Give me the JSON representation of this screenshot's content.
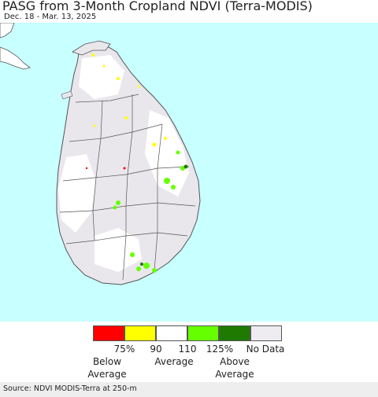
{
  "header": {
    "title": "PASG from 3-Month Cropland NDVI (Terra-MODIS)",
    "date_range": "Dec. 18 - Mar. 13, 2025"
  },
  "colors": {
    "ocean": "#c8ffff",
    "land": "#ffffff",
    "no_data": "#e8e6ea",
    "boundary": "#555555",
    "dry": "#ffff00",
    "wet": "#66ff00",
    "very_wet": "#1e7a00"
  },
  "legend": {
    "classes": [
      {
        "color": "#ff0000",
        "meaning": "below 75%"
      },
      {
        "color": "#ffff00",
        "meaning": "75-90%"
      },
      {
        "color": "#ffffff",
        "meaning": "90-110%"
      },
      {
        "color": "#66ff00",
        "meaning": "110-125%"
      },
      {
        "color": "#1e7a00",
        "meaning": "above 125%"
      },
      {
        "color": "#eeecf0",
        "meaning": "no data"
      }
    ],
    "ticks": [
      "75%",
      "90",
      "110",
      "125%"
    ],
    "no_data_label": "No Data",
    "below_line1": "Below",
    "below_line2": "Average",
    "average_label": "Average",
    "above_line1": "Above",
    "above_line2": "Average"
  },
  "footer": {
    "source": "Source: NDVI MODIS-Terra at 250-m"
  }
}
